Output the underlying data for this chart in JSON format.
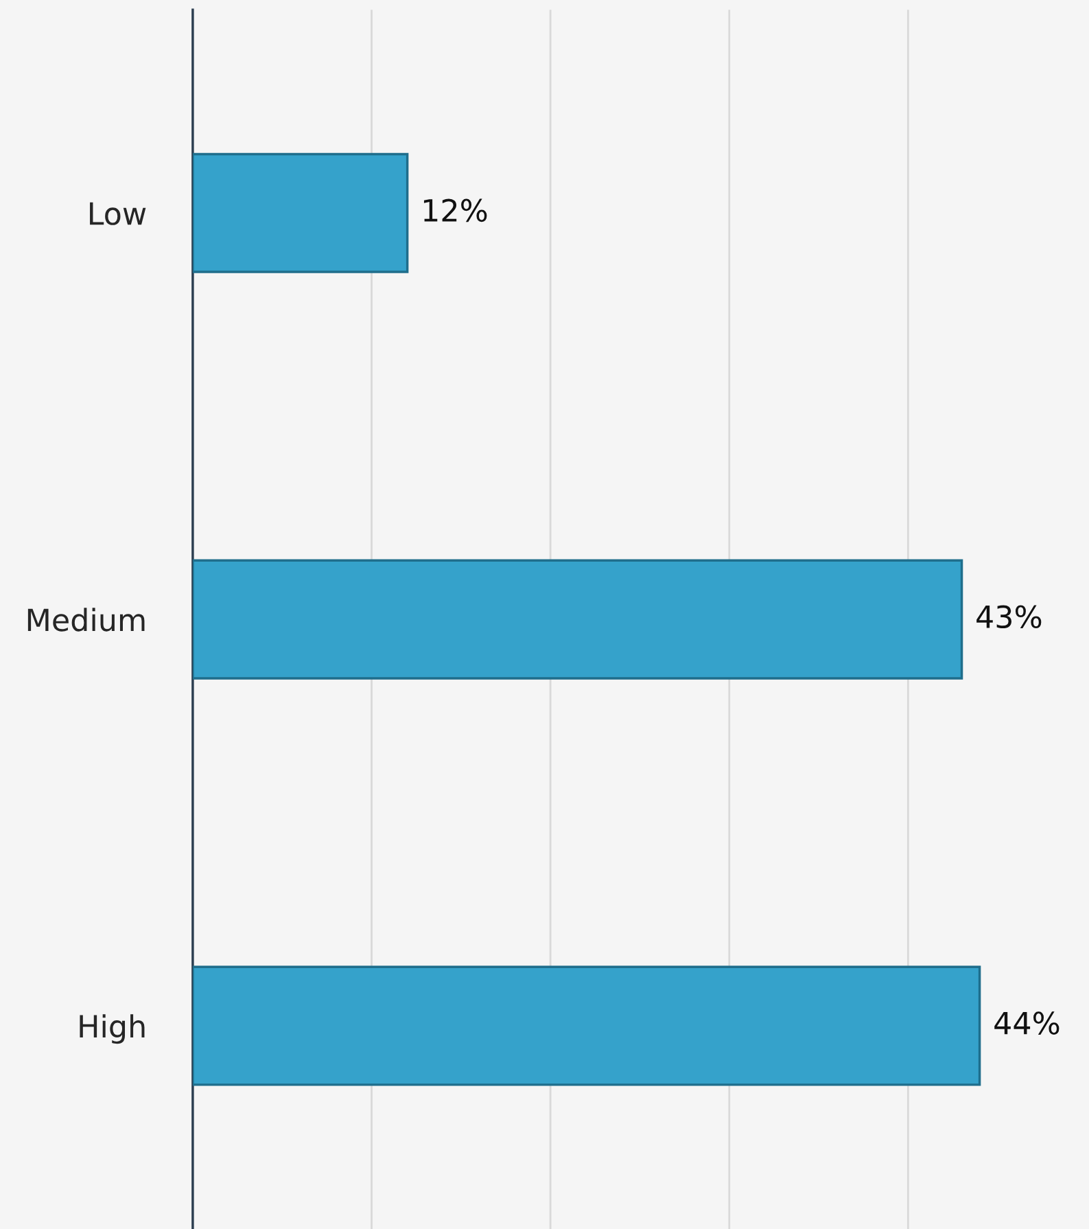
{
  "chart_data": {
    "type": "bar",
    "orientation": "horizontal",
    "categories": [
      "Low",
      "Medium",
      "High"
    ],
    "values": [
      12,
      43,
      44
    ],
    "value_labels": [
      "12%",
      "43%",
      "44%"
    ],
    "color": "#35a2cb",
    "xticks": [
      {
        "value": 10,
        "label": null
      },
      {
        "value": 20,
        "label": null
      },
      {
        "value": 30,
        "label": null
      },
      {
        "value": 40,
        "label": null
      }
    ],
    "grid": "x",
    "legend": false
  }
}
